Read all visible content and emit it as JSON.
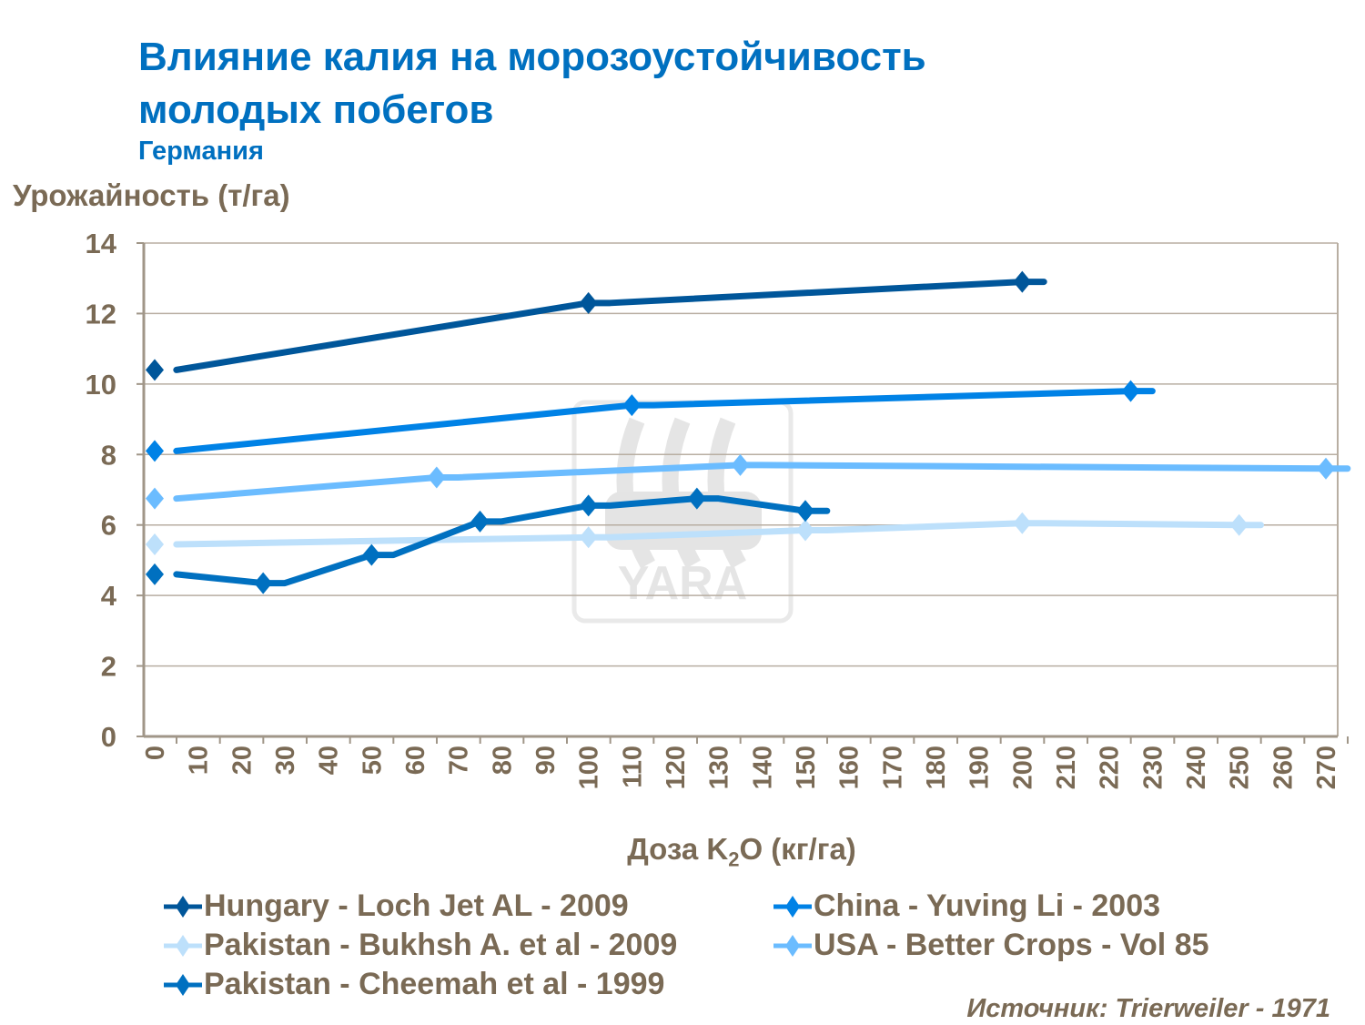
{
  "title_line1": "Влияние калия на морозоустойчивость",
  "title_line2": "молодых побегов",
  "subtitle": "Германия",
  "source": "Источник: Trierweiler - 1971",
  "watermark_logo": "YARA",
  "chart_data": {
    "type": "line",
    "ylabel": "Урожайность (т/га)",
    "xlabel_main": "Доза K",
    "xlabel_sub": "2",
    "xlabel_rest": "O (кг/га)",
    "xlim": [
      0,
      270
    ],
    "ylim": [
      0,
      14
    ],
    "x_ticks": [
      0,
      10,
      20,
      30,
      40,
      50,
      60,
      70,
      80,
      90,
      100,
      110,
      120,
      130,
      140,
      150,
      160,
      170,
      180,
      190,
      200,
      210,
      220,
      230,
      240,
      250,
      260,
      270
    ],
    "y_ticks": [
      0,
      2,
      4,
      6,
      8,
      10,
      12,
      14
    ],
    "grid": "horizontal",
    "legend_position": "bottom",
    "series": [
      {
        "name": "Hungary - Loch Jet AL - 2009",
        "color": "#00569a",
        "x": [
          0,
          100,
          200
        ],
        "y": [
          10.4,
          12.3,
          12.9
        ]
      },
      {
        "name": "China - Yuving Li - 2003",
        "color": "#0082e6",
        "x": [
          0,
          110,
          225
        ],
        "y": [
          8.1,
          9.4,
          9.8
        ]
      },
      {
        "name": "Pakistan - Bukhsh A. et al - 2009",
        "color": "#bde0fb",
        "x": [
          0,
          100,
          150,
          200,
          250
        ],
        "y": [
          5.45,
          5.65,
          5.85,
          6.05,
          6.0
        ]
      },
      {
        "name": "USA - Better Crops - Vol 85",
        "color": "#6bbcff",
        "x": [
          0,
          65,
          135,
          270
        ],
        "y": [
          6.75,
          7.35,
          7.7,
          7.6
        ]
      },
      {
        "name": "Pakistan - Cheemah et al - 1999",
        "color": "#0070c0",
        "x": [
          0,
          25,
          50,
          75,
          100,
          125,
          150
        ],
        "y": [
          4.6,
          4.35,
          5.15,
          6.1,
          6.55,
          6.75,
          6.4
        ]
      }
    ]
  }
}
